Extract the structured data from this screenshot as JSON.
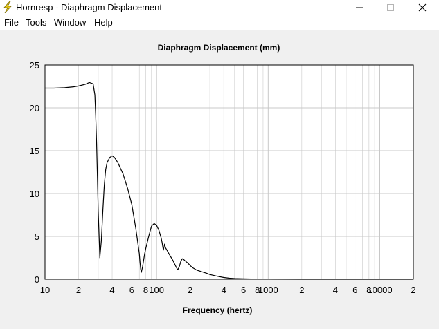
{
  "window": {
    "title": "Hornresp - Diaphragm Displacement",
    "controls": {
      "minimize": "minimize",
      "maximize": "maximize",
      "close": "close"
    }
  },
  "menu": {
    "items": [
      {
        "id": "file",
        "label": "File"
      },
      {
        "id": "tools",
        "label": "Tools"
      },
      {
        "id": "window",
        "label": "Window"
      },
      {
        "id": "help",
        "label": "Help"
      }
    ]
  },
  "colors": {
    "background": "#f0f0f0",
    "plot_area": "#ffffff",
    "grid": "#c8c8c8",
    "curve": "#000000",
    "app_icon": "#f2d21b"
  },
  "icons": {
    "app": "lightning-bolt-icon"
  },
  "chart_data": {
    "type": "line",
    "title": "Diaphragm Displacement (mm)",
    "xlabel": "Frequency (hertz)",
    "ylabel": "",
    "x_scale": "log",
    "xlim": [
      10,
      20000
    ],
    "ylim": [
      0,
      25
    ],
    "grid": true,
    "x_tick_labels": [
      {
        "value": 10,
        "label": "10"
      },
      {
        "value": 20,
        "label": "2"
      },
      {
        "value": 40,
        "label": "4"
      },
      {
        "value": 60,
        "label": "6"
      },
      {
        "value": 80,
        "label": "8"
      },
      {
        "value": 100,
        "label": "100"
      },
      {
        "value": 200,
        "label": "2"
      },
      {
        "value": 400,
        "label": "4"
      },
      {
        "value": 600,
        "label": "6"
      },
      {
        "value": 800,
        "label": "8"
      },
      {
        "value": 1000,
        "label": "1000"
      },
      {
        "value": 2000,
        "label": "2"
      },
      {
        "value": 4000,
        "label": "4"
      },
      {
        "value": 6000,
        "label": "6"
      },
      {
        "value": 8000,
        "label": "8"
      },
      {
        "value": 10000,
        "label": "10000"
      },
      {
        "value": 20000,
        "label": "2"
      }
    ],
    "y_tick_labels": [
      {
        "value": 0,
        "label": "0"
      },
      {
        "value": 5,
        "label": "5"
      },
      {
        "value": 10,
        "label": "10"
      },
      {
        "value": 15,
        "label": "15"
      },
      {
        "value": 20,
        "label": "20"
      },
      {
        "value": 25,
        "label": "25"
      }
    ],
    "series": [
      {
        "x": [
          10,
          12,
          15,
          18,
          20,
          23,
          25,
          27,
          28,
          28.5,
          29,
          29.5,
          30,
          31,
          32,
          33,
          34,
          35,
          36,
          38,
          40,
          42,
          45,
          50,
          55,
          60,
          65,
          70,
          71,
          72,
          73,
          75,
          78,
          80,
          85,
          90,
          95,
          100,
          105,
          110,
          112,
          115,
          118,
          120,
          125,
          130,
          140,
          150,
          155,
          160,
          165,
          170,
          175,
          180,
          190,
          200,
          210,
          230,
          250,
          280,
          300,
          350,
          400,
          450,
          500,
          600,
          700,
          800,
          1000,
          2000,
          5000,
          10000,
          20000
        ],
        "y": [
          22.3,
          22.3,
          22.35,
          22.45,
          22.55,
          22.75,
          22.95,
          22.8,
          21.5,
          19.0,
          16.0,
          12.0,
          8.0,
          2.5,
          4.5,
          8.0,
          11.0,
          12.8,
          13.6,
          14.2,
          14.4,
          14.2,
          13.6,
          12.3,
          10.6,
          8.7,
          6.0,
          3.0,
          2.0,
          1.2,
          0.8,
          1.5,
          2.9,
          3.6,
          5.0,
          6.2,
          6.5,
          6.3,
          5.7,
          4.8,
          4.3,
          3.4,
          4.1,
          3.7,
          3.3,
          2.9,
          2.2,
          1.4,
          1.1,
          1.5,
          2.1,
          2.4,
          2.3,
          2.15,
          1.9,
          1.6,
          1.35,
          1.05,
          0.9,
          0.7,
          0.55,
          0.35,
          0.2,
          0.12,
          0.08,
          0.05,
          0.03,
          0.02,
          0.01,
          0.0,
          0.0,
          0.0,
          0.0
        ]
      }
    ]
  }
}
